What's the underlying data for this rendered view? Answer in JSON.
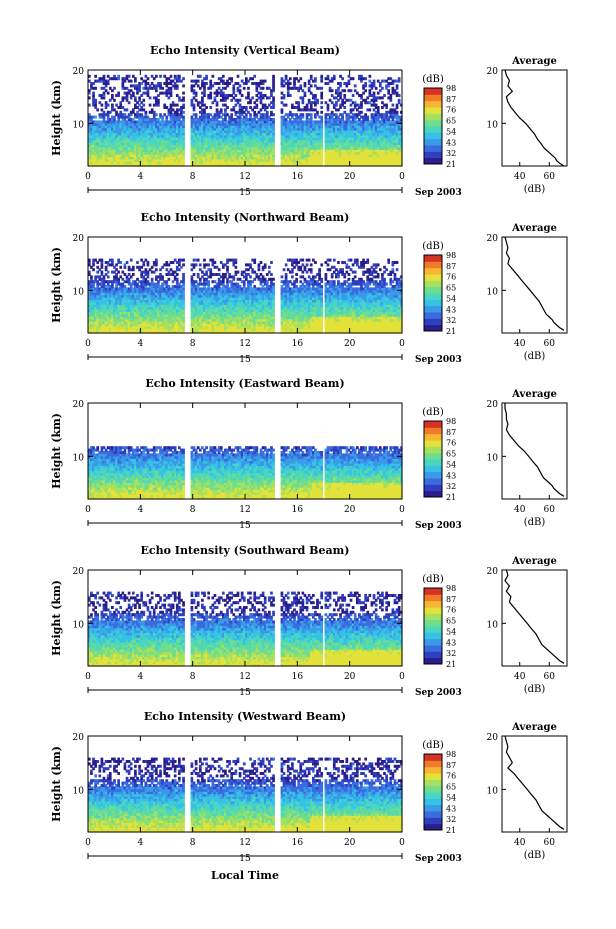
{
  "figure": {
    "xlabel_bottom": "Local Time",
    "date_label": "Sep 2003",
    "colorbar_unit": "(dB)",
    "colorbar_ticks": [
      "21",
      "32",
      "43",
      "54",
      "65",
      "76",
      "87",
      "98"
    ],
    "profile_title": "Average",
    "profile_xlabel": "(dB)",
    "profile_xticks": [
      "40",
      "60"
    ],
    "ylabel": "Height (km)",
    "yticks": [
      "20",
      "10"
    ],
    "xticks": [
      "0",
      "4",
      "8",
      "12",
      "16",
      "20",
      "0"
    ],
    "day_label": "15"
  },
  "chart_data": [
    {
      "type": "heatmap",
      "title": "Echo Intensity (Vertical Beam)",
      "xlabel": "",
      "ylabel": "Height (km)",
      "x_unit": "hour (local time)",
      "xlim": [
        0,
        24
      ],
      "ylim": [
        2,
        20
      ],
      "clim": [
        21,
        98
      ],
      "date": "Sep 2003",
      "data_gaps_hours": [
        [
          7.4,
          7.9
        ],
        [
          14.2,
          14.7
        ],
        [
          17.9,
          18.1
        ]
      ],
      "echo_top_km": 19,
      "profile": {
        "x_db": [
          30,
          31,
          33,
          32,
          35,
          31,
          32,
          34,
          37,
          40,
          44,
          47,
          50,
          52,
          55,
          56,
          58,
          60,
          62,
          64,
          65,
          67,
          70
        ],
        "height_km": [
          20,
          19,
          18,
          17,
          16,
          15,
          14,
          13,
          12,
          11,
          10,
          9,
          8,
          7,
          6,
          5.5,
          5,
          4.5,
          4,
          3.5,
          3,
          2.5,
          2
        ]
      }
    },
    {
      "type": "heatmap",
      "title": "Echo Intensity (Northward Beam)",
      "xlabel": "",
      "ylabel": "Height (km)",
      "x_unit": "hour (local time)",
      "xlim": [
        0,
        24
      ],
      "ylim": [
        2,
        20
      ],
      "clim": [
        21,
        98
      ],
      "date": "Sep 2003",
      "data_gaps_hours": [
        [
          7.4,
          7.9
        ],
        [
          14.2,
          14.7
        ],
        [
          17.9,
          18.1
        ]
      ],
      "echo_top_km": 16,
      "profile": {
        "x_db": [
          30,
          31,
          32,
          31,
          33,
          32,
          35,
          38,
          41,
          44,
          47,
          50,
          53,
          55,
          57,
          58,
          60,
          62,
          63,
          65,
          67,
          70
        ],
        "height_km": [
          20,
          19,
          18,
          17,
          16,
          15,
          14,
          13,
          12,
          11,
          10,
          9,
          8,
          7,
          6,
          5.5,
          5,
          4.5,
          4,
          3.5,
          3,
          2.5
        ]
      }
    },
    {
      "type": "heatmap",
      "title": "Echo Intensity (Eastward Beam)",
      "xlabel": "",
      "ylabel": "Height (km)",
      "x_unit": "hour (local time)",
      "xlim": [
        0,
        24
      ],
      "ylim": [
        2,
        20
      ],
      "clim": [
        21,
        98
      ],
      "date": "Sep 2003",
      "data_gaps_hours": [
        [
          7.4,
          7.9
        ],
        [
          14.2,
          14.7
        ],
        [
          17.9,
          18.1
        ]
      ],
      "echo_top_km": 12,
      "profile": {
        "x_db": [
          30,
          30,
          31,
          31,
          32,
          31,
          33,
          36,
          39,
          43,
          46,
          49,
          52,
          54,
          56,
          58,
          60,
          62,
          63,
          65,
          67,
          70
        ],
        "height_km": [
          20,
          19,
          18,
          17,
          16,
          15,
          14,
          13,
          12,
          11,
          10,
          9,
          8,
          7,
          6,
          5.5,
          5,
          4.5,
          4,
          3.5,
          3,
          2.5
        ]
      }
    },
    {
      "type": "heatmap",
      "title": "Echo Intensity (Southward Beam)",
      "xlabel": "",
      "ylabel": "Height (km)",
      "x_unit": "hour (local time)",
      "xlim": [
        0,
        24
      ],
      "ylim": [
        2,
        20
      ],
      "clim": [
        21,
        98
      ],
      "date": "Sep 2003",
      "data_gaps_hours": [
        [
          7.4,
          7.9
        ],
        [
          14.2,
          14.7
        ],
        [
          17.9,
          18.1
        ]
      ],
      "echo_top_km": 16,
      "profile": {
        "x_db": [
          31,
          32,
          30,
          33,
          31,
          34,
          33,
          36,
          39,
          42,
          45,
          48,
          51,
          53,
          55,
          57,
          59,
          61,
          63,
          65,
          67,
          70
        ],
        "height_km": [
          20,
          19,
          18,
          17,
          16,
          15,
          14,
          13,
          12,
          11,
          10,
          9,
          8,
          7,
          6,
          5.5,
          5,
          4.5,
          4,
          3.5,
          3,
          2.5
        ]
      }
    },
    {
      "type": "heatmap",
      "title": "Echo Intensity (Westward Beam)",
      "xlabel": "Local Time",
      "ylabel": "Height (km)",
      "x_unit": "hour (local time)",
      "xlim": [
        0,
        24
      ],
      "ylim": [
        2,
        20
      ],
      "clim": [
        21,
        98
      ],
      "date": "Sep 2003",
      "data_gaps_hours": [
        [
          7.4,
          7.9
        ],
        [
          14.2,
          14.7
        ],
        [
          17.9,
          18.1
        ]
      ],
      "echo_top_km": 16,
      "profile": {
        "x_db": [
          30,
          31,
          32,
          31,
          33,
          35,
          32,
          36,
          39,
          42,
          45,
          48,
          51,
          53,
          55,
          57,
          59,
          61,
          63,
          65,
          67,
          70
        ],
        "height_km": [
          20,
          19,
          18,
          17,
          16,
          15,
          14,
          13,
          12,
          11,
          10,
          9,
          8,
          7,
          6,
          5.5,
          5,
          4.5,
          4,
          3.5,
          3,
          2.5
        ]
      }
    }
  ],
  "palette": [
    "#2a1d8c",
    "#2f3fc0",
    "#3a6ce0",
    "#3a9ae8",
    "#35c2e6",
    "#4ad6c0",
    "#6fde8c",
    "#a6e060",
    "#e2e23a",
    "#f7b531",
    "#f27b29",
    "#d63226"
  ]
}
